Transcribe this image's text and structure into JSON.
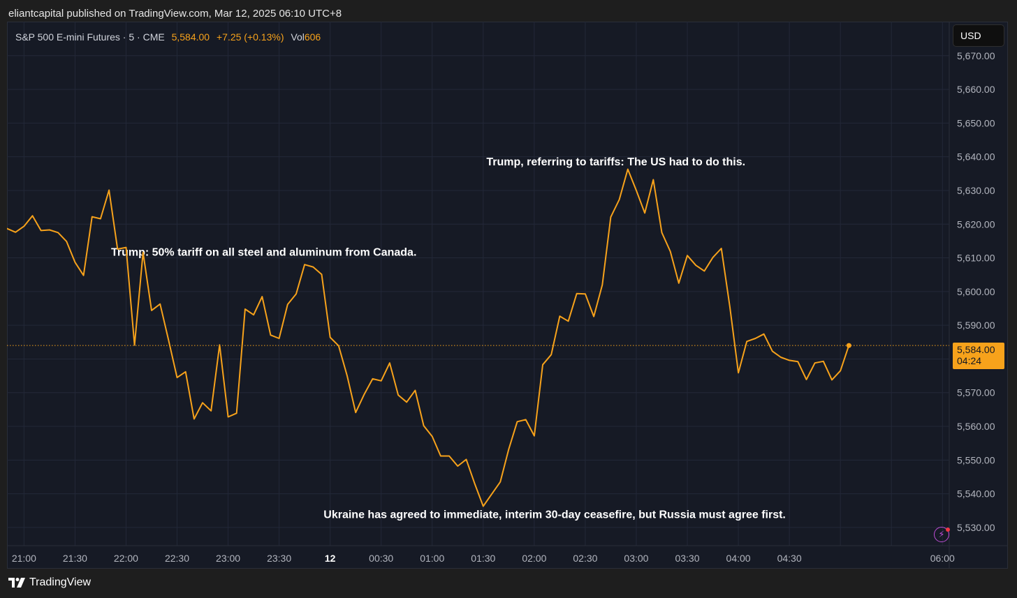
{
  "publisher_line": "eliantcapital published on TradingView.com, Mar 12, 2025 06:10 UTC+8",
  "legend": {
    "symbol": "S&P 500 E-mini Futures · 5 · CME",
    "price": "5,584.00",
    "change": "+7.25 (+0.13%)",
    "vol_label": "Vol",
    "vol_value": "606"
  },
  "currency": "USD",
  "last_price_tag": {
    "price": "5,584.00",
    "countdown": "04:24"
  },
  "brand": "TradingView",
  "colors": {
    "background": "#161a25",
    "line": "#f7a21b",
    "grid": "#232838",
    "axis_text": "#b2b5be",
    "annotation": "#ffffff"
  },
  "chart_data": {
    "type": "line",
    "title": "S&P 500 E-mini Futures · 5 · CME",
    "xlabel": "",
    "ylabel": "",
    "currency": "USD",
    "ylim": [
      5524.6,
      5680.1
    ],
    "xlim": [
      20.8333,
      30.0667
    ],
    "grid": true,
    "y_ticks": [
      5530,
      5540,
      5550,
      5560,
      5570,
      5580,
      5590,
      5600,
      5610,
      5620,
      5630,
      5640,
      5650,
      5660,
      5670
    ],
    "y_tick_labels": [
      "5,530.00",
      "5,540.00",
      "5,550.00",
      "5,560.00",
      "5,570.00",
      "5,580.00",
      "5,590.00",
      "5,600.00",
      "5,610.00",
      "5,620.00",
      "5,630.00",
      "5,640.00",
      "5,650.00",
      "5,660.00",
      "5,670.00"
    ],
    "x_ticks": [
      21,
      21.5,
      22,
      22.5,
      23,
      23.5,
      24,
      24.5,
      25,
      25.5,
      26,
      26.5,
      27,
      27.5,
      28,
      28.5,
      29,
      29.5,
      30
    ],
    "x_tick_labels": [
      "21:00",
      "21:30",
      "22:00",
      "22:30",
      "23:00",
      "23:30",
      "12",
      "00:30",
      "01:00",
      "01:30",
      "02:00",
      "02:30",
      "03:00",
      "03:30",
      "04:00",
      "04:30",
      "06:00"
    ],
    "x_tick_label_hours": [
      21,
      21.5,
      22,
      22.5,
      23,
      23.5,
      24,
      24.5,
      25,
      25.5,
      26,
      26.5,
      27,
      27.5,
      28,
      28.5,
      30
    ],
    "x_hours": [
      20.8333,
      20.9167,
      21,
      21.0833,
      21.1667,
      21.25,
      21.3333,
      21.4167,
      21.5,
      21.5833,
      21.6667,
      21.75,
      21.8333,
      21.9167,
      22,
      22.0833,
      22.1667,
      22.25,
      22.3333,
      22.4167,
      22.5,
      22.5833,
      22.6667,
      22.75,
      22.8333,
      22.9167,
      23,
      23.0833,
      23.1667,
      23.25,
      23.3333,
      23.4167,
      23.5,
      23.5833,
      23.6667,
      23.75,
      23.8333,
      23.9167,
      24,
      24.0833,
      24.1667,
      24.25,
      24.3333,
      24.4167,
      24.5,
      24.5833,
      24.6667,
      24.75,
      24.8333,
      24.9167,
      25,
      25.0833,
      25.1667,
      25.25,
      25.3333,
      25.4167,
      25.5,
      25.5833,
      25.6667,
      25.75,
      25.8333,
      25.9167,
      26,
      26.0833,
      26.1667,
      26.25,
      26.3333,
      26.4167,
      26.5,
      26.5833,
      26.6667,
      26.75,
      26.8333,
      26.9167,
      27,
      27.0833,
      27.1667,
      27.25,
      27.3333,
      27.4167,
      27.5,
      27.5833,
      27.6667,
      27.75,
      27.8333,
      27.9167,
      28,
      28.0833,
      28.1667,
      28.25,
      28.3333,
      28.4167,
      28.5,
      28.5833,
      28.6667,
      28.75,
      28.8333,
      28.9167,
      29,
      29.0833
    ],
    "series": [
      {
        "name": "S&P 500 E-mini Futures",
        "values": [
          5618.7,
          5617.6,
          5619.4,
          5622.5,
          5618.1,
          5618.3,
          5617.5,
          5614.9,
          5608.7,
          5604.8,
          5622.2,
          5621.6,
          5630.1,
          5612.6,
          5613.1,
          5584.1,
          5611.6,
          5594.4,
          5596.3,
          5585.6,
          5574.5,
          5576.2,
          5562.2,
          5567.0,
          5564.6,
          5584.2,
          5562.8,
          5563.9,
          5594.8,
          5593.1,
          5598.5,
          5587.1,
          5586.1,
          5596.2,
          5599.3,
          5608.0,
          5607.3,
          5605.1,
          5586.4,
          5583.9,
          5575.0,
          5564.1,
          5569.5,
          5574.1,
          5573.5,
          5578.8,
          5569.3,
          5567.2,
          5570.7,
          5560.2,
          5557.0,
          5551.2,
          5551.2,
          5548.2,
          5550.2,
          5543.0,
          5536.3,
          5539.9,
          5543.5,
          5553.2,
          5561.4,
          5562.0,
          5557.2,
          5578.3,
          5581.3,
          5592.7,
          5591.2,
          5599.4,
          5599.3,
          5592.6,
          5602.0,
          5622.1,
          5627.3,
          5636.3,
          5630.0,
          5623.3,
          5633.2,
          5617.5,
          5611.9,
          5602.5,
          5610.7,
          5607.8,
          5606.1,
          5610.1,
          5612.8,
          5595.5,
          5575.9,
          5585.2,
          5586.1,
          5587.4,
          5582.3,
          5580.5,
          5579.6,
          5579.2,
          5573.9,
          5578.8,
          5579.3,
          5573.8,
          5576.5,
          5584.0
        ]
      }
    ],
    "last_value": 5584.0,
    "annotations": [
      {
        "text": "Trump: 50% tariff on all steel and aluminum from Canada.",
        "x": 23.35,
        "y": 5610.6
      },
      {
        "text": "Trump, referring to tariffs: The US had to do this.",
        "x": 26.8,
        "y": 5637.4
      },
      {
        "text": "Ukraine has agreed to immediate, interim 30-day ceasefire, but Russia must agree first.",
        "x": 26.2,
        "y": 5532.8
      }
    ]
  }
}
